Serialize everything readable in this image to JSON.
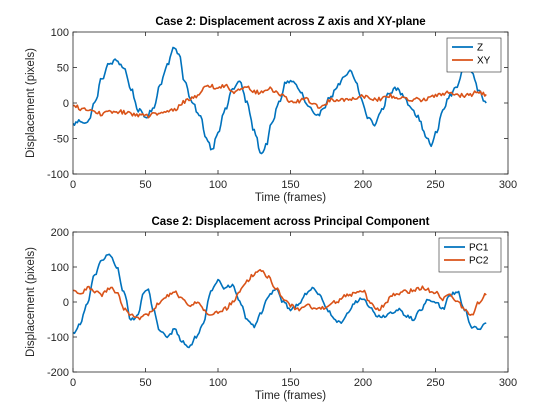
{
  "chart_data": [
    {
      "type": "line",
      "title": "Case 2: Displacement across Z axis and XY-plane",
      "xlabel": "Time (frames)",
      "ylabel": "Displacement (pixels)",
      "xlim": [
        0,
        300
      ],
      "ylim": [
        -100,
        100
      ],
      "xticks": [
        0,
        50,
        100,
        150,
        200,
        250,
        300
      ],
      "yticks": [
        -100,
        -50,
        0,
        50,
        100
      ],
      "xtick_labels": [
        "0",
        "50",
        "100",
        "150",
        "200",
        "250",
        "300"
      ],
      "ytick_labels": [
        "-100",
        "-50",
        "0",
        "50",
        "100"
      ],
      "legend_position": "top-right",
      "series": [
        {
          "name": "Z",
          "color": "#0072BD",
          "noise": 3,
          "points": [
            [
              0,
              -30
            ],
            [
              5,
              -25
            ],
            [
              10,
              -28
            ],
            [
              15,
              0
            ],
            [
              20,
              35
            ],
            [
              25,
              55
            ],
            [
              30,
              60
            ],
            [
              35,
              50
            ],
            [
              40,
              20
            ],
            [
              45,
              -10
            ],
            [
              50,
              -20
            ],
            [
              55,
              -10
            ],
            [
              60,
              25
            ],
            [
              65,
              55
            ],
            [
              70,
              78
            ],
            [
              73,
              70
            ],
            [
              77,
              30
            ],
            [
              82,
              0
            ],
            [
              88,
              -20
            ],
            [
              92,
              -50
            ],
            [
              96,
              -65
            ],
            [
              100,
              -40
            ],
            [
              105,
              -10
            ],
            [
              110,
              20
            ],
            [
              115,
              30
            ],
            [
              120,
              0
            ],
            [
              125,
              -40
            ],
            [
              130,
              -72
            ],
            [
              133,
              -60
            ],
            [
              137,
              -30
            ],
            [
              142,
              0
            ],
            [
              147,
              30
            ],
            [
              152,
              30
            ],
            [
              157,
              15
            ],
            [
              162,
              -5
            ],
            [
              168,
              -20
            ],
            [
              173,
              -5
            ],
            [
              178,
              10
            ],
            [
              183,
              25
            ],
            [
              187,
              35
            ],
            [
              191,
              45
            ],
            [
              195,
              30
            ],
            [
              199,
              5
            ],
            [
              203,
              -20
            ],
            [
              208,
              -30
            ],
            [
              213,
              -10
            ],
            [
              218,
              15
            ],
            [
              223,
              20
            ],
            [
              228,
              10
            ],
            [
              233,
              -5
            ],
            [
              238,
              -20
            ],
            [
              243,
              -45
            ],
            [
              247,
              -60
            ],
            [
              251,
              -40
            ],
            [
              255,
              -10
            ],
            [
              260,
              10
            ],
            [
              265,
              25
            ],
            [
              270,
              50
            ],
            [
              275,
              45
            ],
            [
              280,
              15
            ],
            [
              285,
              0
            ]
          ]
        },
        {
          "name": "XY",
          "color": "#D95319",
          "noise": 3,
          "points": [
            [
              0,
              -5
            ],
            [
              10,
              -10
            ],
            [
              20,
              -15
            ],
            [
              30,
              -12
            ],
            [
              40,
              -15
            ],
            [
              50,
              -18
            ],
            [
              60,
              -15
            ],
            [
              70,
              -10
            ],
            [
              75,
              0
            ],
            [
              80,
              5
            ],
            [
              85,
              10
            ],
            [
              90,
              20
            ],
            [
              95,
              25
            ],
            [
              100,
              20
            ],
            [
              105,
              25
            ],
            [
              110,
              15
            ],
            [
              115,
              20
            ],
            [
              120,
              25
            ],
            [
              125,
              15
            ],
            [
              130,
              15
            ],
            [
              135,
              20
            ],
            [
              140,
              15
            ],
            [
              145,
              10
            ],
            [
              150,
              0
            ],
            [
              160,
              5
            ],
            [
              170,
              -5
            ],
            [
              180,
              5
            ],
            [
              190,
              5
            ],
            [
              200,
              10
            ],
            [
              210,
              5
            ],
            [
              220,
              10
            ],
            [
              230,
              5
            ],
            [
              240,
              5
            ],
            [
              250,
              10
            ],
            [
              260,
              15
            ],
            [
              270,
              10
            ],
            [
              280,
              15
            ],
            [
              285,
              12
            ]
          ]
        }
      ]
    },
    {
      "type": "line",
      "title": "Case 2: Displacement across Principal Component",
      "xlabel": "Time (frames)",
      "ylabel": "Displacement (pixels)",
      "xlim": [
        0,
        300
      ],
      "ylim": [
        -200,
        200
      ],
      "xticks": [
        0,
        50,
        100,
        150,
        200,
        250,
        300
      ],
      "yticks": [
        -200,
        -100,
        0,
        100,
        200
      ],
      "xtick_labels": [
        "0",
        "50",
        "100",
        "150",
        "200",
        "250",
        "300"
      ],
      "ytick_labels": [
        "-200",
        "-100",
        "0",
        "100",
        "200"
      ],
      "legend_position": "top-right",
      "series": [
        {
          "name": "PC1",
          "color": "#0072BD",
          "noise": 5,
          "points": [
            [
              0,
              -90
            ],
            [
              5,
              -60
            ],
            [
              10,
              0
            ],
            [
              15,
              80
            ],
            [
              20,
              120
            ],
            [
              25,
              135
            ],
            [
              30,
              100
            ],
            [
              35,
              30
            ],
            [
              40,
              -50
            ],
            [
              45,
              -40
            ],
            [
              48,
              20
            ],
            [
              52,
              40
            ],
            [
              55,
              -20
            ],
            [
              60,
              -80
            ],
            [
              65,
              -100
            ],
            [
              70,
              -80
            ],
            [
              75,
              -110
            ],
            [
              80,
              -130
            ],
            [
              85,
              -100
            ],
            [
              90,
              -60
            ],
            [
              95,
              30
            ],
            [
              100,
              60
            ],
            [
              105,
              40
            ],
            [
              110,
              50
            ],
            [
              115,
              0
            ],
            [
              120,
              -50
            ],
            [
              125,
              -70
            ],
            [
              130,
              -30
            ],
            [
              135,
              20
            ],
            [
              140,
              40
            ],
            [
              145,
              0
            ],
            [
              150,
              -20
            ],
            [
              155,
              -10
            ],
            [
              160,
              20
            ],
            [
              165,
              40
            ],
            [
              170,
              20
            ],
            [
              175,
              -20
            ],
            [
              180,
              -50
            ],
            [
              185,
              -60
            ],
            [
              190,
              -30
            ],
            [
              195,
              0
            ],
            [
              200,
              10
            ],
            [
              205,
              -20
            ],
            [
              210,
              -40
            ],
            [
              215,
              -40
            ],
            [
              220,
              -30
            ],
            [
              225,
              -20
            ],
            [
              230,
              -40
            ],
            [
              235,
              -50
            ],
            [
              240,
              -20
            ],
            [
              245,
              10
            ],
            [
              250,
              0
            ],
            [
              255,
              -20
            ],
            [
              260,
              20
            ],
            [
              265,
              30
            ],
            [
              270,
              -20
            ],
            [
              275,
              -70
            ],
            [
              280,
              -80
            ],
            [
              285,
              -60
            ]
          ]
        },
        {
          "name": "PC2",
          "color": "#D95319",
          "noise": 6,
          "points": [
            [
              0,
              30
            ],
            [
              5,
              20
            ],
            [
              10,
              40
            ],
            [
              15,
              30
            ],
            [
              20,
              20
            ],
            [
              25,
              40
            ],
            [
              30,
              30
            ],
            [
              35,
              -20
            ],
            [
              40,
              -40
            ],
            [
              45,
              -50
            ],
            [
              50,
              -40
            ],
            [
              55,
              -20
            ],
            [
              60,
              0
            ],
            [
              65,
              20
            ],
            [
              70,
              30
            ],
            [
              75,
              10
            ],
            [
              80,
              -10
            ],
            [
              85,
              0
            ],
            [
              90,
              -20
            ],
            [
              95,
              -40
            ],
            [
              100,
              -30
            ],
            [
              105,
              -20
            ],
            [
              110,
              0
            ],
            [
              115,
              30
            ],
            [
              120,
              60
            ],
            [
              125,
              80
            ],
            [
              130,
              90
            ],
            [
              135,
              70
            ],
            [
              140,
              40
            ],
            [
              145,
              10
            ],
            [
              150,
              -10
            ],
            [
              155,
              -20
            ],
            [
              160,
              -10
            ],
            [
              170,
              -20
            ],
            [
              180,
              0
            ],
            [
              190,
              20
            ],
            [
              200,
              30
            ],
            [
              205,
              0
            ],
            [
              210,
              -20
            ],
            [
              215,
              -10
            ],
            [
              220,
              20
            ],
            [
              230,
              30
            ],
            [
              240,
              40
            ],
            [
              250,
              30
            ],
            [
              255,
              10
            ],
            [
              260,
              20
            ],
            [
              265,
              0
            ],
            [
              270,
              -20
            ],
            [
              275,
              -40
            ],
            [
              280,
              0
            ],
            [
              285,
              20
            ]
          ]
        }
      ]
    }
  ]
}
